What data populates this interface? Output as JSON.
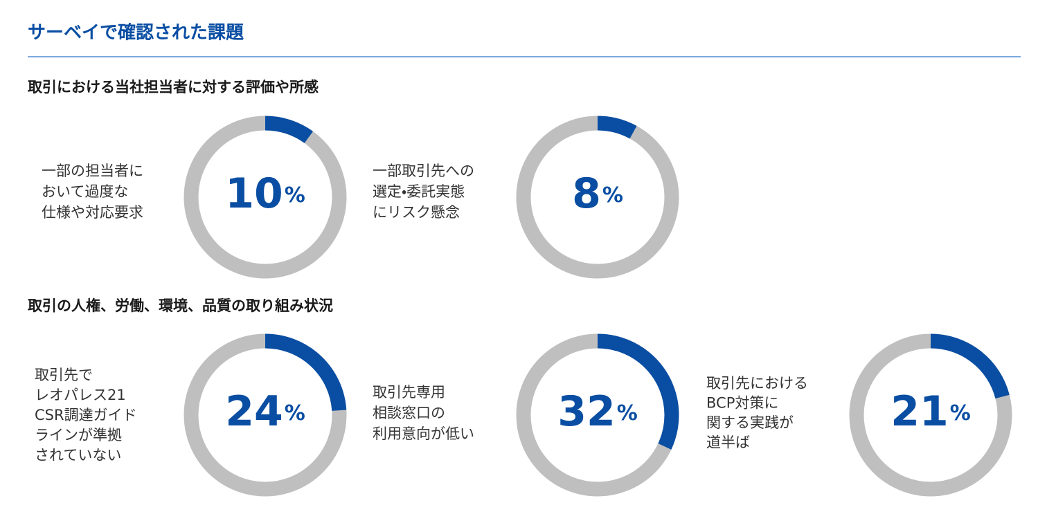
{
  "title": "サーベイで確認された課題",
  "sections": [
    {
      "heading": "取引における当社担当者に対する評価や所感",
      "chart_data": [
        {
          "type": "donut",
          "label": [
            "一部の担当者に",
            "おいて過度な",
            "仕様や対応要求"
          ],
          "values": [
            10
          ],
          "unit": "%",
          "color": "#0a4ea3",
          "track_color": "#bfbfbf"
        },
        {
          "type": "donut",
          "label": [
            "一部取引先への",
            "選定・委託実態",
            "にリスク懸念"
          ],
          "values": [
            8
          ],
          "unit": "%",
          "color": "#0a4ea3",
          "track_color": "#bfbfbf"
        }
      ]
    },
    {
      "heading": "取引の人権、労働、環境、品質の取り組み状況",
      "chart_data": [
        {
          "type": "donut",
          "label": [
            "取引先で",
            "レオパレス21",
            "CSR調達ガイド",
            "ラインが準拠",
            "されていない"
          ],
          "values": [
            24
          ],
          "unit": "%",
          "color": "#0a4ea3",
          "track_color": "#bfbfbf"
        },
        {
          "type": "donut",
          "label": [
            "取引先専用",
            "相談窓口の",
            "利用意向が低い"
          ],
          "values": [
            32
          ],
          "unit": "%",
          "color": "#0a4ea3",
          "track_color": "#bfbfbf"
        },
        {
          "type": "donut",
          "label": [
            "取引先における",
            "BCP対策に",
            "関する実践が",
            "道半ば"
          ],
          "values": [
            21
          ],
          "unit": "%",
          "color": "#0a4ea3",
          "track_color": "#bfbfbf"
        }
      ]
    }
  ]
}
